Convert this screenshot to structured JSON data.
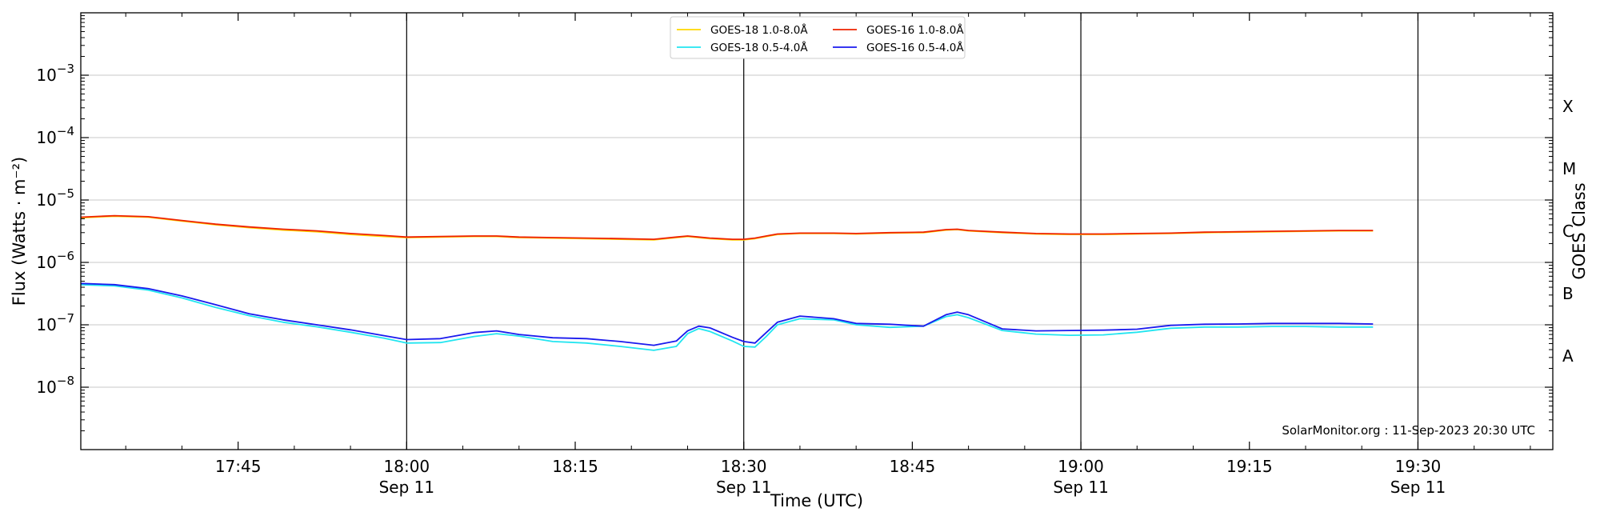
{
  "chart_data": {
    "type": "line",
    "xlabel": "Time (UTC)",
    "ylabel": "Flux (Watts · m⁻²)",
    "y2label": "GOES Class",
    "yscale": "log",
    "ylim": [
      1e-09,
      0.01
    ],
    "xlim": [
      "17:31",
      "19:42"
    ],
    "grid": "horizontal",
    "legend_position": "top-center",
    "credit": "SolarMonitor.org : 11-Sep-2023 20:30 UTC",
    "x_ticks": [
      {
        "time": "17:45",
        "label": "17:45",
        "date": ""
      },
      {
        "time": "18:00",
        "label": "18:00",
        "date": "Sep 11"
      },
      {
        "time": "18:15",
        "label": "18:15",
        "date": ""
      },
      {
        "time": "18:30",
        "label": "18:30",
        "date": "Sep 11"
      },
      {
        "time": "18:45",
        "label": "18:45",
        "date": ""
      },
      {
        "time": "19:00",
        "label": "19:00",
        "date": "Sep 11"
      },
      {
        "time": "19:15",
        "label": "19:15",
        "date": ""
      },
      {
        "time": "19:30",
        "label": "19:30",
        "date": "Sep 11"
      }
    ],
    "vlines": [
      "18:00",
      "18:30",
      "19:00",
      "19:30"
    ],
    "y_ticks": [
      {
        "value": 1e-08,
        "base": "10",
        "exp": "−8"
      },
      {
        "value": 1e-07,
        "base": "10",
        "exp": "−7"
      },
      {
        "value": 1e-06,
        "base": "10",
        "exp": "−6"
      },
      {
        "value": 1e-05,
        "base": "10",
        "exp": "−5"
      },
      {
        "value": 0.0001,
        "base": "10",
        "exp": "−4"
      },
      {
        "value": 0.001,
        "base": "10",
        "exp": "−3"
      }
    ],
    "goes_classes": [
      {
        "label": "A",
        "value": 3.16e-08
      },
      {
        "label": "B",
        "value": 3.16e-07
      },
      {
        "label": "C",
        "value": 3.16e-06
      },
      {
        "label": "M",
        "value": 3.16e-05
      },
      {
        "label": "X",
        "value": 0.000316
      }
    ],
    "x": [
      "17:31",
      "17:34",
      "17:37",
      "17:40",
      "17:43",
      "17:46",
      "17:49",
      "17:52",
      "17:55",
      "17:58",
      "18:00",
      "18:03",
      "18:06",
      "18:08",
      "18:10",
      "18:13",
      "18:16",
      "18:19",
      "18:22",
      "18:24",
      "18:25",
      "18:26",
      "18:27",
      "18:29",
      "18:30",
      "18:31",
      "18:32",
      "18:33",
      "18:35",
      "18:38",
      "18:40",
      "18:43",
      "18:46",
      "18:48",
      "18:49",
      "18:50",
      "18:53",
      "18:56",
      "18:59",
      "19:02",
      "19:05",
      "19:08",
      "19:11",
      "19:14",
      "19:17",
      "19:20",
      "19:23",
      "19:26"
    ],
    "series": [
      {
        "name": "GOES-18 1.0-8.0Å",
        "color": "#ffd700",
        "values": [
          5.2e-06,
          5.5e-06,
          5.3e-06,
          4.6e-06,
          4e-06,
          3.6e-06,
          3.3e-06,
          3.1e-06,
          2.8e-06,
          2.6e-06,
          2.5e-06,
          2.55e-06,
          2.6e-06,
          2.6e-06,
          2.5e-06,
          2.45e-06,
          2.4e-06,
          2.35e-06,
          2.3e-06,
          2.5e-06,
          2.6e-06,
          2.5e-06,
          2.4e-06,
          2.3e-06,
          2.3e-06,
          2.4e-06,
          2.6e-06,
          2.8e-06,
          2.9e-06,
          2.9e-06,
          2.85e-06,
          2.95e-06,
          3e-06,
          3.3e-06,
          3.35e-06,
          3.2e-06,
          3e-06,
          2.85e-06,
          2.8e-06,
          2.8e-06,
          2.85e-06,
          2.9e-06,
          3e-06,
          3.05e-06,
          3.1e-06,
          3.15e-06,
          3.2e-06,
          3.2e-06
        ]
      },
      {
        "name": "GOES-16 1.0-8.0Å",
        "color": "#ee2200",
        "values": [
          5.3e-06,
          5.6e-06,
          5.4e-06,
          4.7e-06,
          4.1e-06,
          3.7e-06,
          3.4e-06,
          3.2e-06,
          2.9e-06,
          2.7e-06,
          2.55e-06,
          2.6e-06,
          2.65e-06,
          2.65e-06,
          2.55e-06,
          2.5e-06,
          2.45e-06,
          2.4e-06,
          2.35e-06,
          2.55e-06,
          2.65e-06,
          2.55e-06,
          2.45e-06,
          2.35e-06,
          2.35e-06,
          2.45e-06,
          2.65e-06,
          2.85e-06,
          2.95e-06,
          2.95e-06,
          2.9e-06,
          3e-06,
          3.05e-06,
          3.35e-06,
          3.4e-06,
          3.25e-06,
          3.05e-06,
          2.9e-06,
          2.85e-06,
          2.85e-06,
          2.9e-06,
          2.95e-06,
          3.05e-06,
          3.1e-06,
          3.15e-06,
          3.2e-06,
          3.25e-06,
          3.25e-06
        ]
      },
      {
        "name": "GOES-18 0.5-4.0Å",
        "color": "#22e5f0",
        "values": [
          4.4e-07,
          4.2e-07,
          3.6e-07,
          2.7e-07,
          1.9e-07,
          1.4e-07,
          1.1e-07,
          9.3e-08,
          7.6e-08,
          6.1e-08,
          5.1e-08,
          5.2e-08,
          6.5e-08,
          7.2e-08,
          6.6e-08,
          5.4e-08,
          5.1e-08,
          4.5e-08,
          3.9e-08,
          4.5e-08,
          7.2e-08,
          8.7e-08,
          7.8e-08,
          5.5e-08,
          4.5e-08,
          4.4e-08,
          6.5e-08,
          1e-07,
          1.25e-07,
          1.2e-07,
          1e-07,
          9.1e-08,
          9.5e-08,
          1.35e-07,
          1.45e-07,
          1.3e-07,
          8.1e-08,
          7.1e-08,
          6.8e-08,
          6.9e-08,
          7.6e-08,
          8.8e-08,
          9.2e-08,
          9.2e-08,
          9.4e-08,
          9.4e-08,
          9.2e-08,
          9.2e-08
        ]
      },
      {
        "name": "GOES-16 0.5-4.0Å",
        "color": "#1a1aee",
        "values": [
          4.6e-07,
          4.4e-07,
          3.8e-07,
          2.9e-07,
          2.1e-07,
          1.5e-07,
          1.2e-07,
          1e-07,
          8.3e-08,
          6.7e-08,
          5.8e-08,
          6e-08,
          7.5e-08,
          8e-08,
          7e-08,
          6.2e-08,
          6e-08,
          5.4e-08,
          4.7e-08,
          5.5e-08,
          8e-08,
          9.5e-08,
          8.9e-08,
          6.3e-08,
          5.4e-08,
          5.1e-08,
          7.5e-08,
          1.1e-07,
          1.38e-07,
          1.25e-07,
          1.05e-07,
          1.02e-07,
          9.5e-08,
          1.45e-07,
          1.6e-07,
          1.45e-07,
          8.6e-08,
          8e-08,
          8.1e-08,
          8.2e-08,
          8.5e-08,
          9.8e-08,
          1.02e-07,
          1.03e-07,
          1.05e-07,
          1.05e-07,
          1.05e-07,
          1.03e-07
        ]
      }
    ],
    "legend_entries": [
      {
        "label": "GOES-18 1.0-8.0Å",
        "color": "#ffd700"
      },
      {
        "label": "GOES-18 0.5-4.0Å",
        "color": "#22e5f0"
      },
      {
        "label": "GOES-16 1.0-8.0Å",
        "color": "#ee2200"
      },
      {
        "label": "GOES-16 0.5-4.0Å",
        "color": "#1a1aee"
      }
    ]
  }
}
